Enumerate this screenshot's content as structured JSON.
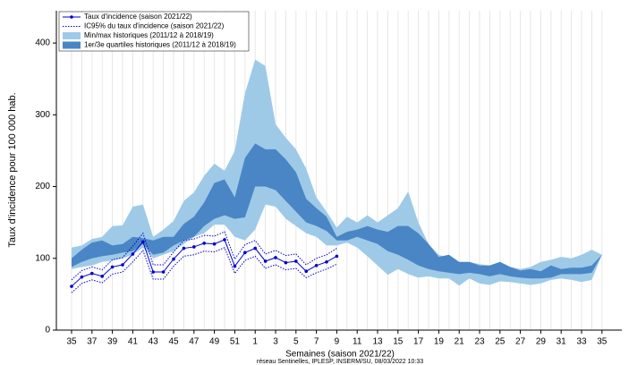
{
  "chart_data": {
    "type": "line",
    "title_x": "Semaines (saison 2021/22)",
    "title_y": "Taux d'incidence pour 100 000 hab.",
    "caption": "réseau Sentinelles, IPLESP, INSERM/SU, 08/03/2022 10:33",
    "categories": [
      "35",
      null,
      "37",
      null,
      "39",
      null,
      "41",
      null,
      "43",
      null,
      "45",
      null,
      "47",
      null,
      "49",
      null,
      "51",
      null,
      "1",
      null,
      "3",
      null,
      "5",
      null,
      "7",
      null,
      "9",
      null,
      "11",
      null,
      "13",
      null,
      "15",
      null,
      "17",
      null,
      "19",
      null,
      "21",
      null,
      "23",
      null,
      "25",
      null,
      "27",
      null,
      "29",
      null,
      "31",
      null,
      "33",
      null,
      "35"
    ],
    "ylim": [
      0,
      445
    ],
    "yticks": [
      0,
      100,
      200,
      300,
      400
    ],
    "grid": true,
    "series": [
      {
        "name": "Taux d'incidence (saison 2021/22)",
        "color": "#0000cc",
        "values": [
          61,
          74,
          79,
          75,
          88,
          91,
          106,
          123,
          81,
          81,
          99,
          114,
          116,
          121,
          120,
          126,
          89,
          108,
          114,
          96,
          101,
          94,
          96,
          82,
          90,
          95,
          103,
          null,
          null,
          null,
          null,
          null,
          null,
          null,
          null,
          null,
          null,
          null,
          null,
          null,
          null,
          null,
          null,
          null,
          null,
          null,
          null,
          null,
          null,
          null,
          null,
          null,
          null
        ]
      },
      {
        "name": "IC95% du taux d'incidence (saison 2021/22)",
        "color": "#0000cc",
        "lower": [
          52,
          65,
          70,
          66,
          78,
          81,
          95,
          111,
          71,
          71,
          89,
          103,
          105,
          110,
          109,
          115,
          79,
          97,
          103,
          86,
          91,
          84,
          86,
          73,
          80,
          85,
          92,
          null,
          null,
          null,
          null,
          null,
          null,
          null,
          null,
          null,
          null,
          null,
          null,
          null,
          null,
          null,
          null,
          null,
          null,
          null,
          null,
          null,
          null,
          null,
          null,
          null,
          null
        ],
        "upper": [
          70,
          83,
          88,
          84,
          98,
          101,
          117,
          135,
          91,
          91,
          109,
          125,
          127,
          132,
          131,
          137,
          99,
          119,
          125,
          106,
          111,
          104,
          106,
          91,
          100,
          105,
          114,
          null,
          null,
          null,
          null,
          null,
          null,
          null,
          null,
          null,
          null,
          null,
          null,
          null,
          null,
          null,
          null,
          null,
          null,
          null,
          null,
          null,
          null,
          null,
          null,
          null,
          null
        ]
      },
      {
        "name": "Min/max historiques (2011/12 à 2018/19)",
        "color": "#9ecae8",
        "lower": [
          85,
          88,
          90,
          95,
          97,
          100,
          105,
          115,
          100,
          105,
          110,
          120,
          130,
          135,
          147,
          147,
          130,
          125,
          140,
          175,
          172,
          155,
          145,
          135,
          130,
          118,
          118,
          122,
          115,
          103,
          90,
          77,
          85,
          78,
          73,
          75,
          72,
          72,
          62,
          72,
          65,
          63,
          68,
          67,
          65,
          63,
          65,
          70,
          72,
          70,
          67,
          70,
          105
        ],
        "upper": [
          115,
          118,
          127,
          130,
          145,
          146,
          172,
          175,
          130,
          140,
          152,
          180,
          192,
          215,
          232,
          222,
          250,
          330,
          377,
          368,
          287,
          268,
          252,
          225,
          185,
          165,
          143,
          158,
          150,
          160,
          150,
          160,
          170,
          193,
          150,
          120,
          105,
          100,
          92,
          95,
          92,
          90,
          95,
          88,
          85,
          88,
          95,
          98,
          102,
          100,
          105,
          112,
          105
        ]
      },
      {
        "name": "1er/3e quartiles historiques (2011/12 à 2018/19)",
        "color": "#4a86c5",
        "lower": [
          88,
          95,
          100,
          103,
          105,
          108,
          110,
          120,
          105,
          108,
          118,
          125,
          130,
          145,
          155,
          160,
          155,
          157,
          200,
          200,
          195,
          180,
          165,
          150,
          145,
          138,
          125,
          125,
          130,
          125,
          120,
          110,
          105,
          98,
          90,
          85,
          82,
          80,
          78,
          80,
          78,
          75,
          78,
          75,
          73,
          72,
          72,
          73,
          78,
          78,
          78,
          80,
          105
        ],
        "upper": [
          100,
          112,
          122,
          125,
          118,
          120,
          130,
          128,
          125,
          130,
          130,
          148,
          158,
          178,
          205,
          210,
          185,
          240,
          260,
          252,
          252,
          238,
          220,
          183,
          170,
          158,
          130,
          137,
          140,
          145,
          140,
          137,
          145,
          145,
          135,
          120,
          102,
          105,
          95,
          95,
          90,
          90,
          95,
          88,
          83,
          85,
          82,
          90,
          85,
          87,
          87,
          90,
          105
        ]
      }
    ]
  }
}
